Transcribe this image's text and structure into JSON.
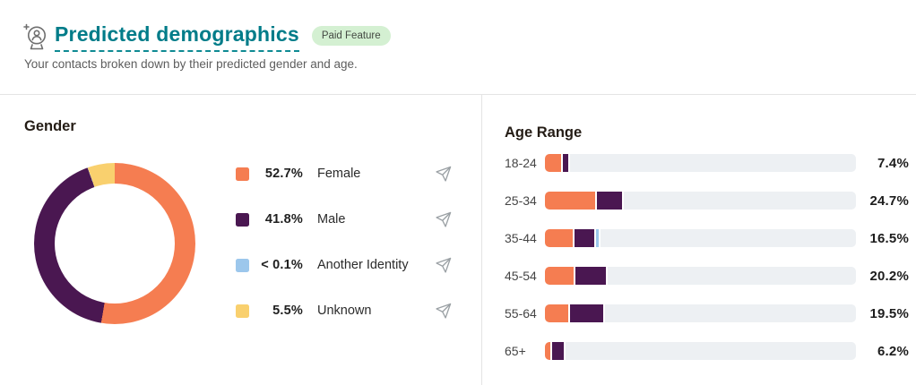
{
  "header": {
    "icon_name": "crystal-ball-icon",
    "title": "Predicted demographics",
    "badge": "Paid Feature",
    "subtitle": "Your contacts broken down by their predicted gender and age."
  },
  "colors": {
    "accent_teal": "#007c89",
    "badge_bg": "#d4f0d2",
    "track": "#edf0f3",
    "divider": "#e4e4e4",
    "icon_gray": "#9aa0a4",
    "palette": {
      "female": "#f57d51",
      "male": "#4a1751",
      "another_identity": "#9cc7ec",
      "unknown": "#f9d06e"
    }
  },
  "gender": {
    "heading": "Gender",
    "legend": [
      {
        "value_label": "52.7%",
        "label": "Female",
        "key": "female",
        "pct": 52.7
      },
      {
        "value_label": "41.8%",
        "label": "Male",
        "key": "male",
        "pct": 41.8
      },
      {
        "value_label": "< 0.1%",
        "label": "Another Identity",
        "key": "another_identity",
        "pct": 0.05
      },
      {
        "value_label": "5.5%",
        "label": "Unknown",
        "key": "unknown",
        "pct": 5.5
      }
    ]
  },
  "age_range": {
    "heading": "Age Range",
    "rows": [
      {
        "label": "18-24",
        "total_label": "7.4%",
        "segments": [
          {
            "key": "female",
            "pct": 5.2
          },
          {
            "key": "male",
            "pct": 1.8
          }
        ]
      },
      {
        "label": "25-34",
        "total_label": "24.7%",
        "segments": [
          {
            "key": "female",
            "pct": 16.1
          },
          {
            "key": "male",
            "pct": 8.1
          }
        ]
      },
      {
        "label": "35-44",
        "total_label": "16.5%",
        "segments": [
          {
            "key": "female",
            "pct": 8.9
          },
          {
            "key": "male",
            "pct": 6.3
          },
          {
            "key": "another_identity",
            "pct": 0.9
          }
        ]
      },
      {
        "label": "45-54",
        "total_label": "20.2%",
        "segments": [
          {
            "key": "female",
            "pct": 9.2
          },
          {
            "key": "male",
            "pct": 9.8
          }
        ]
      },
      {
        "label": "55-64",
        "total_label": "19.5%",
        "segments": [
          {
            "key": "female",
            "pct": 7.5
          },
          {
            "key": "male",
            "pct": 10.7
          }
        ]
      },
      {
        "label": "65+",
        "total_label": "6.2%",
        "segments": [
          {
            "key": "female",
            "pct": 1.7
          },
          {
            "key": "male",
            "pct": 3.7
          }
        ]
      }
    ]
  },
  "chart_data": [
    {
      "type": "pie",
      "title": "Gender",
      "donut": true,
      "labels": [
        "Female",
        "Male",
        "Another Identity",
        "Unknown"
      ],
      "values": [
        52.7,
        41.8,
        0.05,
        5.5
      ],
      "value_labels": [
        "52.7%",
        "41.8%",
        "< 0.1%",
        "5.5%"
      ],
      "colors": [
        "#f57d51",
        "#4a1751",
        "#9cc7ec",
        "#f9d06e"
      ],
      "legend_position": "right",
      "start_angle_deg": 0,
      "direction": "clockwise"
    },
    {
      "type": "bar",
      "title": "Age Range",
      "orientation": "horizontal",
      "categories": [
        "18-24",
        "25-34",
        "35-44",
        "45-54",
        "55-64",
        "65+"
      ],
      "totals": [
        7.4,
        24.7,
        16.5,
        20.2,
        19.5,
        6.2
      ],
      "total_labels": [
        "7.4%",
        "24.7%",
        "16.5%",
        "20.2%",
        "19.5%",
        "6.2%"
      ],
      "series": [
        {
          "name": "Female",
          "color": "#f57d51",
          "values": [
            5.2,
            16.1,
            8.9,
            9.2,
            7.5,
            1.7
          ]
        },
        {
          "name": "Male",
          "color": "#4a1751",
          "values": [
            1.8,
            8.1,
            6.3,
            9.8,
            10.7,
            3.7
          ]
        },
        {
          "name": "Another Identity",
          "color": "#9cc7ec",
          "values": [
            0,
            0,
            0.9,
            0,
            0,
            0
          ]
        }
      ],
      "xlim": [
        0,
        100
      ],
      "grid": false,
      "value_label_position": "right-of-bar"
    }
  ]
}
